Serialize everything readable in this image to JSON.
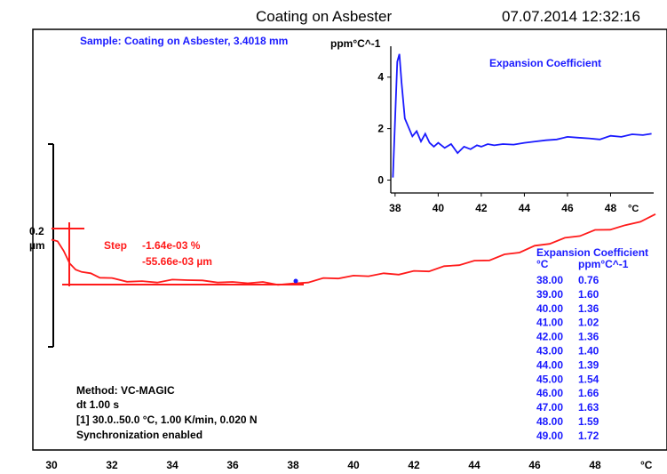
{
  "header": {
    "title": "Coating on Asbester",
    "timestamp": "07.07.2014 12:32:16"
  },
  "sample_label": "Sample: Coating on Asbester, 3.4018 mm",
  "scale_bar": {
    "value": "0.2",
    "unit": "µm"
  },
  "step": {
    "label": "Step",
    "line1": "-1.64e-03 %",
    "line2": "-55.66e-03 µm"
  },
  "method": {
    "line1": "Method: VC-MAGIC",
    "line2": "dt 1.00 s",
    "line3": "[1] 30.0..50.0 °C, 1.00 K/min,  0.020 N",
    "line4": "Synchronization enabled"
  },
  "table": {
    "title": "Expansion Coefficient",
    "col1": "°C",
    "col2": "ppm°C^-1",
    "rows": [
      [
        "38.00",
        "0.76"
      ],
      [
        "39.00",
        "1.60"
      ],
      [
        "40.00",
        "1.36"
      ],
      [
        "41.00",
        "1.02"
      ],
      [
        "42.00",
        "1.36"
      ],
      [
        "43.00",
        "1.40"
      ],
      [
        "44.00",
        "1.39"
      ],
      [
        "45.00",
        "1.54"
      ],
      [
        "46.00",
        "1.66"
      ],
      [
        "47.00",
        "1.63"
      ],
      [
        "48.00",
        "1.59"
      ],
      [
        "49.00",
        "1.72"
      ]
    ]
  },
  "colors": {
    "main_series": "#ff1a1a",
    "inset_series": "#1a1aff",
    "text_blue": "#1a1aff"
  },
  "chart_data": [
    {
      "type": "line",
      "title": "",
      "xlabel": "°C",
      "ylabel": "µm",
      "xlim": [
        30,
        50
      ],
      "ylim": [
        -0.28,
        0.04
      ],
      "x_ticks": [
        "30",
        "32",
        "34",
        "36",
        "38",
        "40",
        "42",
        "44",
        "46",
        "48"
      ],
      "grid": false,
      "series": [
        {
          "name": "",
          "x": [
            30.0,
            30.2,
            30.4,
            30.6,
            30.8,
            31.0,
            31.3,
            31.6,
            32.0,
            32.5,
            33.0,
            33.5,
            34.0,
            34.5,
            35.0,
            35.5,
            36.0,
            36.5,
            37.0,
            37.5,
            38.0,
            38.5,
            39.0,
            39.5,
            40.0,
            40.5,
            41.0,
            41.5,
            42.0,
            42.5,
            43.0,
            43.5,
            44.0,
            44.5,
            45.0,
            45.5,
            46.0,
            46.5,
            47.0,
            47.5,
            48.0,
            48.5,
            49.0,
            49.5,
            50.0
          ],
          "y": [
            0.0,
            -0.002,
            -0.014,
            -0.03,
            -0.038,
            -0.041,
            -0.044,
            -0.047,
            -0.05,
            -0.052,
            -0.054,
            -0.053,
            -0.052,
            -0.05,
            -0.053,
            -0.053,
            -0.055,
            -0.054,
            -0.055,
            -0.056,
            -0.057,
            -0.053,
            -0.05,
            -0.048,
            -0.047,
            -0.045,
            -0.044,
            -0.043,
            -0.041,
            -0.039,
            -0.035,
            -0.031,
            -0.028,
            -0.025,
            -0.02,
            -0.015,
            -0.009,
            -0.004,
            0.001,
            0.006,
            0.011,
            0.014,
            0.017,
            0.024,
            0.031
          ]
        }
      ]
    },
    {
      "type": "line",
      "title": "Expansion Coefficient",
      "xlabel": "°C",
      "ylabel": "ppm°C^-1",
      "xlim": [
        37.8,
        50
      ],
      "ylim": [
        -0.5,
        5.2
      ],
      "x_ticks": [
        "38",
        "40",
        "42",
        "44",
        "46",
        "48"
      ],
      "y_ticks": [
        "0",
        "2",
        "4"
      ],
      "grid": false,
      "series": [
        {
          "name": "",
          "x": [
            37.9,
            38.0,
            38.1,
            38.2,
            38.3,
            38.45,
            38.6,
            38.8,
            39.0,
            39.2,
            39.4,
            39.6,
            39.8,
            40.0,
            40.3,
            40.6,
            40.9,
            41.2,
            41.5,
            41.8,
            42.0,
            42.3,
            42.6,
            43.0,
            43.5,
            44.0,
            44.5,
            45.0,
            45.5,
            46.0,
            46.5,
            47.0,
            47.5,
            48.0,
            48.5,
            49.0,
            49.5,
            49.9
          ],
          "y": [
            0.1,
            2.4,
            4.6,
            4.9,
            3.8,
            2.4,
            2.1,
            1.7,
            1.9,
            1.5,
            1.8,
            1.45,
            1.3,
            1.45,
            1.25,
            1.4,
            1.05,
            1.3,
            1.2,
            1.35,
            1.3,
            1.4,
            1.35,
            1.4,
            1.38,
            1.45,
            1.5,
            1.55,
            1.58,
            1.68,
            1.65,
            1.62,
            1.58,
            1.72,
            1.68,
            1.78,
            1.75,
            1.8
          ]
        }
      ]
    }
  ]
}
